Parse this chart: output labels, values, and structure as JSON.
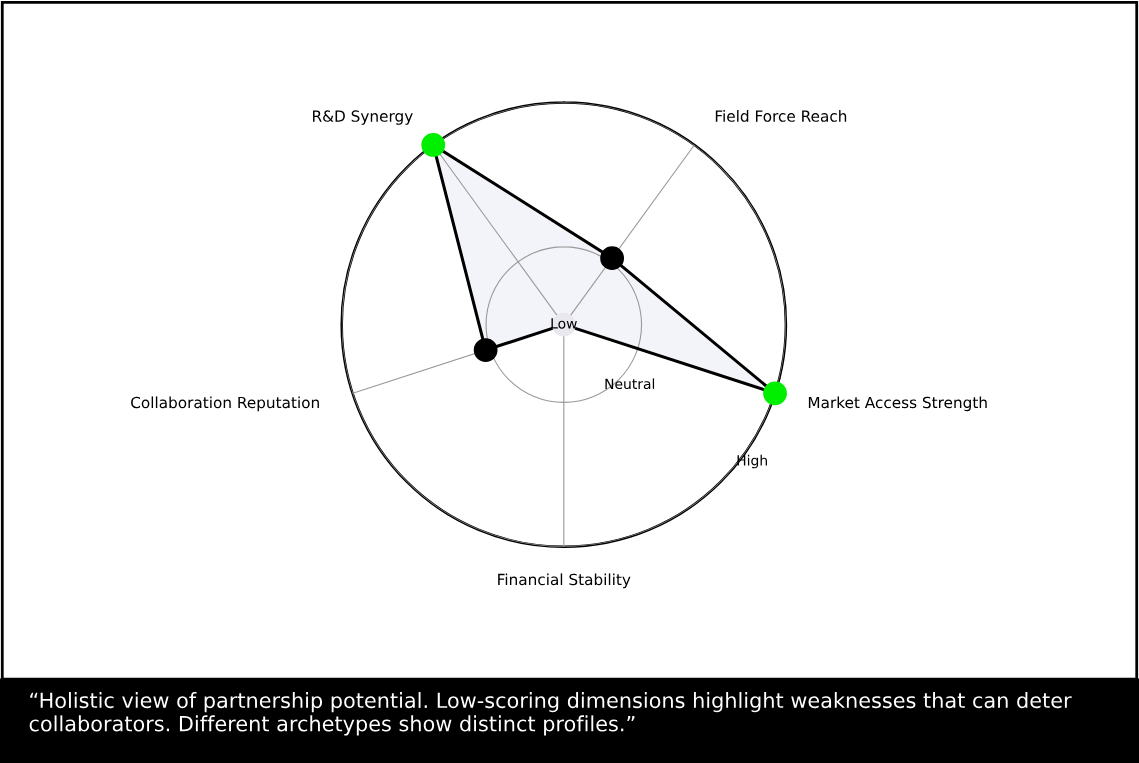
{
  "chart_data": {
    "type": "radar",
    "categories": [
      "R&D Synergy",
      "Field Force Reach",
      "Market Access Strength",
      "Financial Stability",
      "Collaboration Reputation"
    ],
    "series": [
      {
        "color": "#000000",
        "colors": [
          "#00ee00",
          "#000000",
          "#00ee00",
          "#e8e8ee",
          "#000000"
        ],
        "values": [
          1,
          0.37,
          1,
          0,
          0.37
        ]
      }
    ],
    "ylim": [
      0,
      1
    ],
    "yticks": [
      {
        "value": 0,
        "label": "Low"
      },
      {
        "value": 0.35,
        "label": "Neutral"
      },
      {
        "value": 1,
        "label": "High"
      }
    ],
    "grid": true,
    "marker": "circle",
    "line_style": "solid",
    "annotations": [
      "“Holistic view of partnership potential. Low-scoring dimensions highlight weaknesses that can deter collaborators. Different archetypes show distinct profiles.”"
    ]
  }
}
